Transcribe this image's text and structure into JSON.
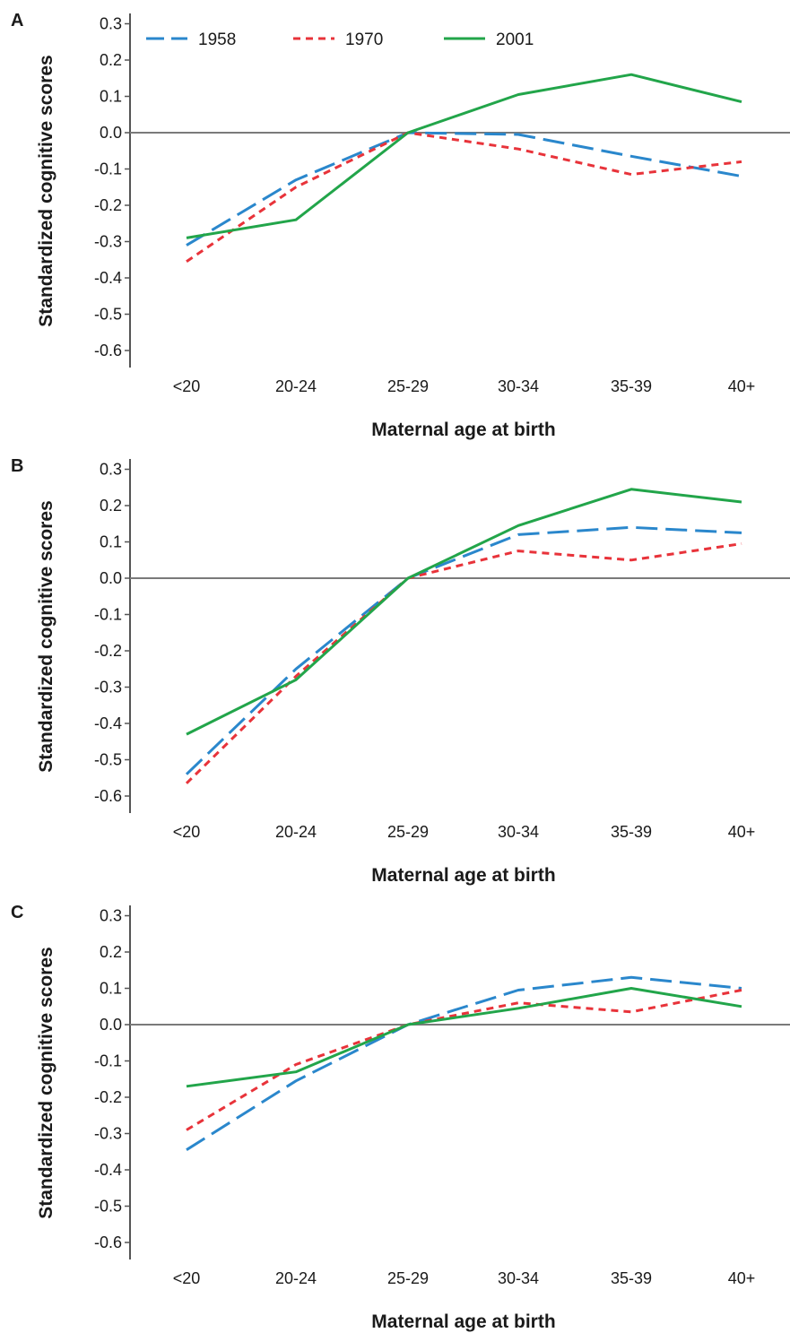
{
  "figure": {
    "legend": [
      {
        "label": "1958",
        "color": "#2a87cc",
        "dash": "long-dash"
      },
      {
        "label": "1970",
        "color": "#e8333a",
        "dash": "short-dash"
      },
      {
        "label": "2001",
        "color": "#22a54a",
        "dash": "solid"
      }
    ]
  },
  "chart_data": [
    {
      "type": "line",
      "panel_label": "A",
      "categories": [
        "<20",
        "20-24",
        "25-29",
        "30-34",
        "35-39",
        "40+"
      ],
      "yticks": [
        "0.3",
        "0.2",
        "0.1",
        "0.0",
        "-0.1",
        "-0.2",
        "-0.3",
        "-0.4",
        "-0.5",
        "-0.6"
      ],
      "ylim": [
        -0.64,
        0.34
      ],
      "xlabel": "Maternal age at birth",
      "ylabel": "Standardized cognitive scores",
      "legend_position": "top",
      "series": [
        {
          "name": "1958",
          "values": [
            -0.31,
            -0.13,
            0.0,
            -0.005,
            -0.065,
            -0.12
          ]
        },
        {
          "name": "1970",
          "values": [
            -0.355,
            -0.15,
            0.0,
            -0.045,
            -0.115,
            -0.08
          ]
        },
        {
          "name": "2001",
          "values": [
            -0.29,
            -0.24,
            0.0,
            0.105,
            0.16,
            0.085
          ]
        }
      ]
    },
    {
      "type": "line",
      "panel_label": "B",
      "categories": [
        "<20",
        "20-24",
        "25-29",
        "30-34",
        "35-39",
        "40+"
      ],
      "yticks": [
        "0.3",
        "0.2",
        "0.1",
        "0.0",
        "-0.1",
        "-0.2",
        "-0.3",
        "-0.4",
        "-0.5",
        "-0.6"
      ],
      "ylim": [
        -0.64,
        0.34
      ],
      "xlabel": "Maternal age at birth",
      "ylabel": "Standardized cognitive scores",
      "series": [
        {
          "name": "1958",
          "values": [
            -0.54,
            -0.25,
            0.0,
            0.12,
            0.14,
            0.125
          ]
        },
        {
          "name": "1970",
          "values": [
            -0.565,
            -0.27,
            0.0,
            0.075,
            0.05,
            0.095
          ]
        },
        {
          "name": "2001",
          "values": [
            -0.43,
            -0.28,
            0.0,
            0.145,
            0.245,
            0.21
          ]
        }
      ]
    },
    {
      "type": "line",
      "panel_label": "C",
      "categories": [
        "<20",
        "20-24",
        "25-29",
        "30-34",
        "35-39",
        "40+"
      ],
      "yticks": [
        "0.3",
        "0.2",
        "0.1",
        "0.0",
        "-0.1",
        "-0.2",
        "-0.3",
        "-0.4",
        "-0.5",
        "-0.6"
      ],
      "ylim": [
        -0.64,
        0.34
      ],
      "xlabel": "Maternal age at birth",
      "ylabel": "Standardized cognitive scores",
      "series": [
        {
          "name": "1958",
          "values": [
            -0.345,
            -0.155,
            0.0,
            0.095,
            0.13,
            0.1
          ]
        },
        {
          "name": "1970",
          "values": [
            -0.29,
            -0.11,
            0.0,
            0.06,
            0.035,
            0.095
          ]
        },
        {
          "name": "2001",
          "values": [
            -0.17,
            -0.13,
            0.0,
            0.045,
            0.1,
            0.05
          ]
        }
      ]
    }
  ]
}
